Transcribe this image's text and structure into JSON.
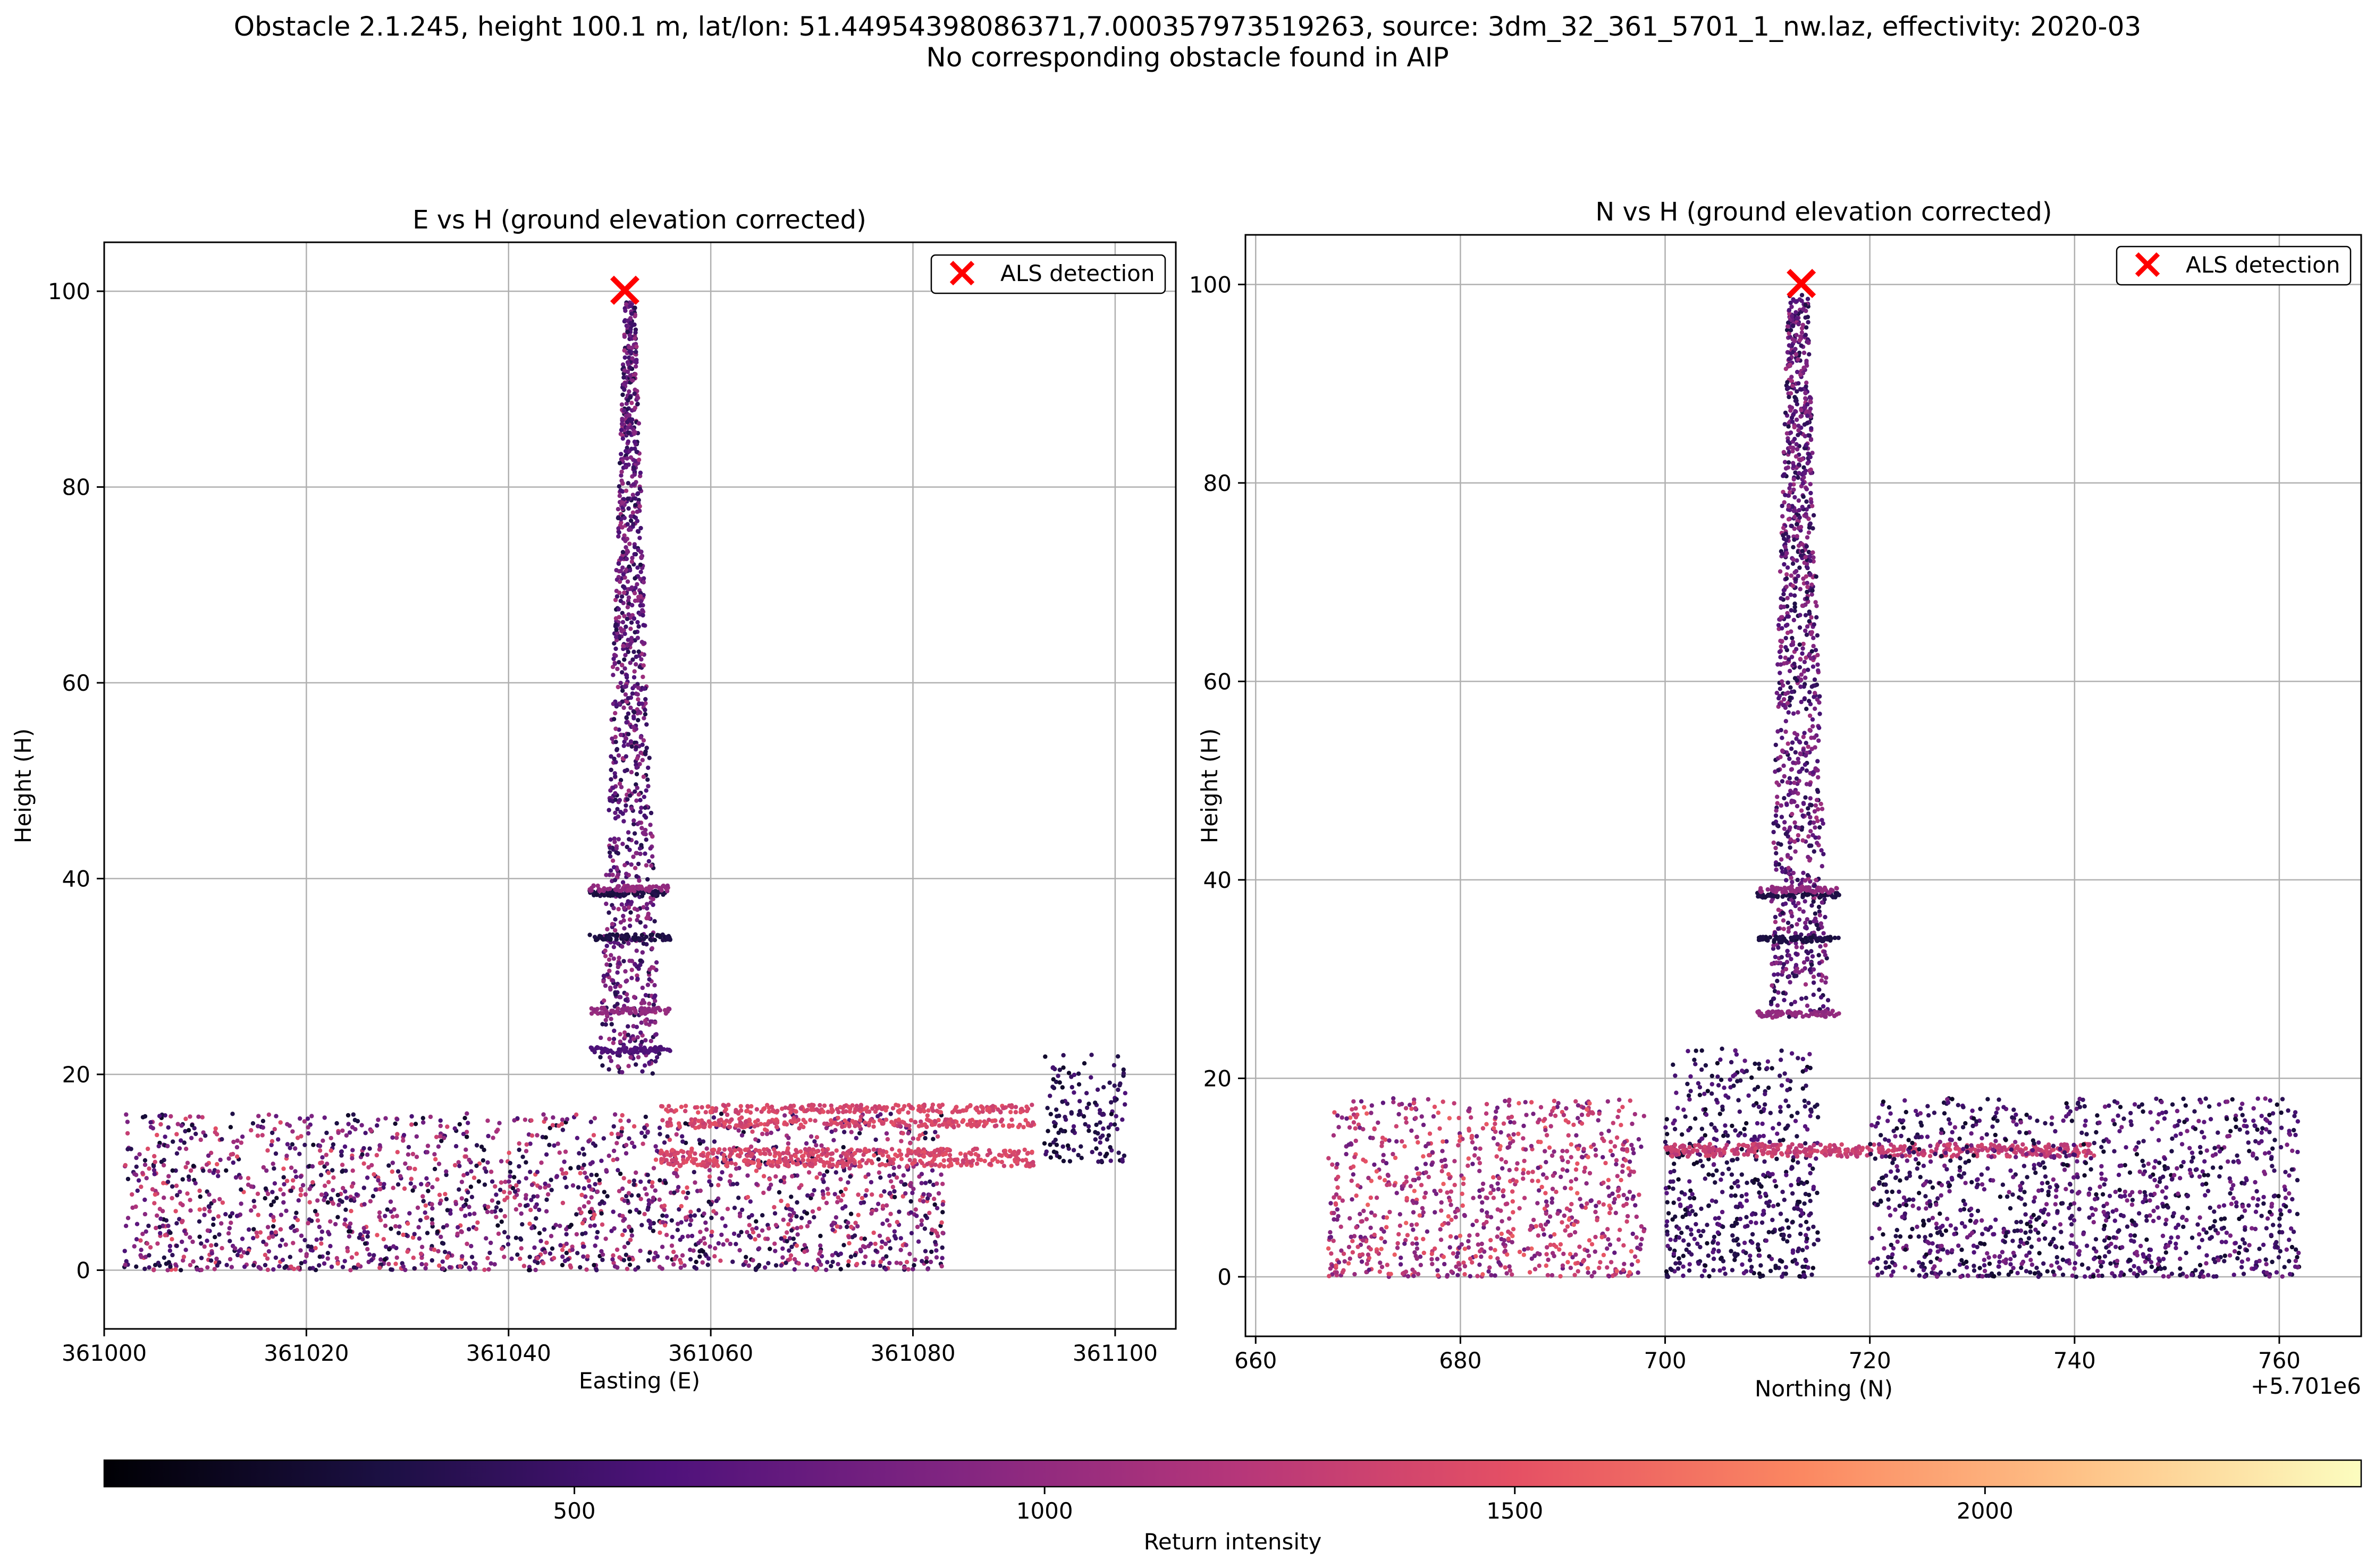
{
  "suptitle": {
    "line1": "Obstacle 2.1.245, height 100.1 m, lat/lon: 51.44954398086371,7.000357973519263, source: 3dm_32_361_5701_1_nw.laz, effectivity: 2020-03",
    "line2": "No corresponding obstacle found in AIP"
  },
  "chart_data": [
    {
      "type": "scatter",
      "title": "E vs H (ground elevation corrected)",
      "xlabel": "Easting (E)",
      "ylabel": "Height (H)",
      "xlim": [
        361000,
        361106
      ],
      "ylim": [
        -6,
        105
      ],
      "xticks": [
        361000,
        361020,
        361040,
        361060,
        361080,
        361100
      ],
      "xtick_labels": [
        "361000",
        "361020",
        "361040",
        "361060",
        "361080",
        "361100"
      ],
      "yticks": [
        0,
        20,
        40,
        60,
        80,
        100
      ],
      "yticks_labels": [
        "0",
        "20",
        "40",
        "60",
        "80",
        "100"
      ],
      "grid": true,
      "legend": {
        "placement": "top-right",
        "entries": [
          "ALS detection"
        ]
      },
      "series": [
        {
          "name": "ALS detection",
          "marker": "x",
          "color": "#ff0000",
          "x": [
            361051.5
          ],
          "y": [
            100.1
          ]
        }
      ],
      "point_cloud": {
        "colorvar": "Return intensity",
        "structures": [
          {
            "kind": "ground_vegetation",
            "x_range": [
              361002,
              361083
            ],
            "y_range": [
              0,
              16
            ],
            "intensity_range": [
              150,
              1500
            ]
          },
          {
            "kind": "tower_shaft",
            "x_center": 361052,
            "width_base": 6,
            "width_top": 1,
            "y_range": [
              20,
              99
            ],
            "intensity_range": [
              300,
              1100
            ]
          },
          {
            "kind": "tower_platforms",
            "x_center": 361052,
            "heights": [
              26.5,
              34,
              38.5,
              39,
              22.5
            ],
            "intensity": [
              1000,
              300,
              300,
              1000,
              600
            ]
          },
          {
            "kind": "roof_bands",
            "x_range": [
              361055,
              361092
            ],
            "heights": [
              16.5,
              15,
              12,
              11
            ],
            "intensity": [
              1400
            ]
          },
          {
            "kind": "tree_cluster_right",
            "x_range": [
              361093,
              361101
            ],
            "y_range": [
              11,
              22
            ],
            "intensity_range": [
              150,
              600
            ]
          }
        ]
      }
    },
    {
      "type": "scatter",
      "title": "N vs H (ground elevation corrected)",
      "xlabel": "Northing (N)",
      "ylabel": "Height (H)",
      "x_offset_label": "+5.701e6",
      "xlim": [
        659,
        768
      ],
      "ylim": [
        -6,
        105
      ],
      "xticks": [
        660,
        680,
        700,
        720,
        740,
        760
      ],
      "xtick_labels": [
        "660",
        "680",
        "700",
        "720",
        "740",
        "760"
      ],
      "yticks": [
        0,
        20,
        40,
        60,
        80,
        100
      ],
      "yticks_labels": [
        "0",
        "20",
        "40",
        "60",
        "80",
        "100"
      ],
      "grid": true,
      "legend": {
        "placement": "top-right",
        "entries": [
          "ALS detection"
        ]
      },
      "series": [
        {
          "name": "ALS detection",
          "marker": "x",
          "color": "#ff0000",
          "x": [
            713.3
          ],
          "y": [
            100.1
          ]
        }
      ],
      "point_cloud": {
        "colorvar": "Return intensity",
        "structures": [
          {
            "kind": "building_left",
            "x_range": [
              667,
              698
            ],
            "y_range": [
              0,
              18
            ],
            "intensity_range": [
              700,
              1600
            ]
          },
          {
            "kind": "tower_shaft",
            "x_center": 713,
            "width_base": 6,
            "width_top": 2,
            "y_range": [
              26,
              99
            ],
            "intensity_range": [
              300,
              1100
            ]
          },
          {
            "kind": "tower_platforms",
            "x_center": 713,
            "heights": [
              26.5,
              34,
              38.5,
              39
            ],
            "intensity": [
              1000,
              300,
              300,
              1000
            ]
          },
          {
            "kind": "trees_center",
            "x_range": [
              700,
              715
            ],
            "y_range": [
              0,
              23
            ],
            "intensity_range": [
              150,
              700
            ]
          },
          {
            "kind": "roof_band",
            "x_range": [
              700,
              742
            ],
            "heights": [
              12.5,
              13
            ],
            "intensity": [
              1300
            ]
          },
          {
            "kind": "trees_right",
            "x_range": [
              720,
              762
            ],
            "y_range": [
              0,
              18
            ],
            "intensity_range": [
              150,
              900
            ]
          }
        ]
      }
    }
  ],
  "colorbar": {
    "label": "Return intensity",
    "colormap": "magma",
    "vmin": 0,
    "vmax": 2400,
    "ticks": [
      500,
      1000,
      1500,
      2000
    ],
    "tick_labels": [
      "500",
      "1000",
      "1500",
      "2000"
    ]
  }
}
